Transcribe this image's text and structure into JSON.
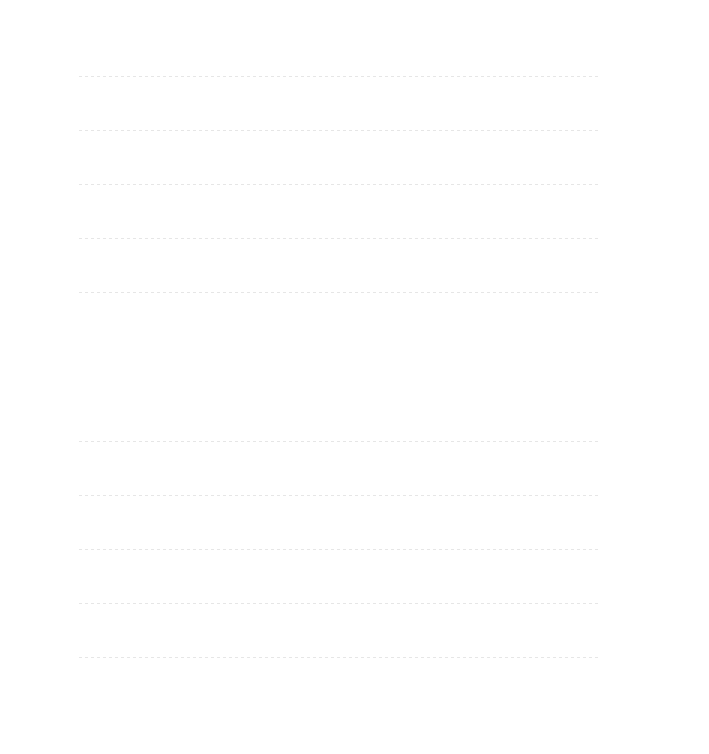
{
  "chart_data": [
    {
      "type": "line",
      "title": "",
      "xlabel": "",
      "ylabel": "",
      "grid": true,
      "series": []
    },
    {
      "type": "line",
      "title": "",
      "xlabel": "",
      "ylabel": "",
      "grid": true,
      "series": []
    }
  ],
  "colors": {
    "background": "#ffffff",
    "gridline": "#e6e6e6"
  }
}
